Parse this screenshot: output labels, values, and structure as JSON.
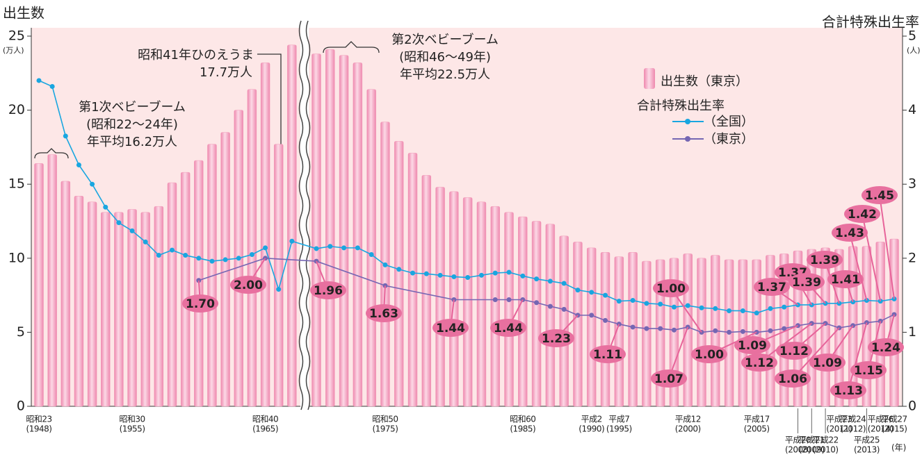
{
  "chart_data": {
    "type": "bar",
    "y_label": "出生数",
    "y_unit": "(万人)",
    "y2_label": "合計特殊出生率",
    "y2_unit": "(人)",
    "x_unit": "(年)",
    "ylim": [
      0,
      25
    ],
    "yticks": [
      0,
      5,
      10,
      15,
      20,
      25
    ],
    "y2lim": [
      0,
      5
    ],
    "y2ticks": [
      0,
      1,
      2,
      3,
      4,
      5
    ],
    "legend_title": "合計特殊出生率",
    "categories": [
      "昭和23",
      null,
      null,
      null,
      null,
      null,
      null,
      "昭和30",
      null,
      null,
      null,
      null,
      null,
      null,
      null,
      null,
      null,
      "昭和40",
      null,
      null,
      null,
      null,
      null,
      null,
      null,
      "昭和50",
      null,
      null,
      null,
      null,
      null,
      null,
      null,
      null,
      null,
      "昭和60",
      null,
      null,
      null,
      null,
      "平成2",
      null,
      "平成7",
      null,
      null,
      null,
      null,
      "平成12",
      null,
      null,
      null,
      null,
      "平成17",
      null,
      null,
      "平成20",
      "平成21",
      "平成22",
      "平成23",
      "平成24",
      "平成25",
      "平成26",
      "平成27"
    ],
    "category_years": [
      "(1948)",
      null,
      null,
      null,
      null,
      null,
      null,
      "(1955)",
      null,
      null,
      null,
      null,
      null,
      null,
      null,
      null,
      null,
      "(1965)",
      null,
      null,
      null,
      null,
      null,
      null,
      null,
      "(1975)",
      null,
      null,
      null,
      null,
      null,
      null,
      null,
      null,
      null,
      "(1985)",
      null,
      null,
      null,
      null,
      "(1990)",
      null,
      "(1995)",
      null,
      null,
      null,
      null,
      "(2000)",
      null,
      null,
      null,
      null,
      "(2005)",
      null,
      null,
      "(2008)",
      "(2009)",
      "(2010)",
      "(2011)",
      "(2012)",
      "(2013)",
      "(2014)",
      "(2015)"
    ],
    "series": [
      {
        "name": "出生数（東京）",
        "type": "bar",
        "color": "#f29ab9",
        "values": [
          16.4,
          17.0,
          15.2,
          14.2,
          13.8,
          13.1,
          13.1,
          13.3,
          13.1,
          13.5,
          15.1,
          15.8,
          16.6,
          17.7,
          18.5,
          20.0,
          21.4,
          23.2,
          17.7,
          24.4,
          23.8,
          24.1,
          23.7,
          23.2,
          21.4,
          19.2,
          17.9,
          17.1,
          15.6,
          14.8,
          14.5,
          14.1,
          13.8,
          13.5,
          13.1,
          12.8,
          12.5,
          12.3,
          11.5,
          11.1,
          10.7,
          10.4,
          10.1,
          10.4,
          9.8,
          9.9,
          10.0,
          10.3,
          10.0,
          10.2,
          9.9,
          9.9,
          9.9,
          10.2,
          10.3,
          10.5,
          10.6,
          10.7,
          10.6,
          10.8,
          10.8,
          11.1,
          11.3
        ]
      },
      {
        "name": "（全国）",
        "type": "line",
        "axis": "y2",
        "color": "#19a6e0",
        "values": [
          4.4,
          4.32,
          3.65,
          3.26,
          3.0,
          2.69,
          2.48,
          2.37,
          2.22,
          2.04,
          2.11,
          2.04,
          2.0,
          1.96,
          1.98,
          2.0,
          2.05,
          2.14,
          1.58,
          2.23,
          2.13,
          2.16,
          2.14,
          2.14,
          2.05,
          1.91,
          1.85,
          1.8,
          1.79,
          1.77,
          1.75,
          1.74,
          1.77,
          1.8,
          1.81,
          1.76,
          1.72,
          1.69,
          1.66,
          1.57,
          1.54,
          1.5,
          1.42,
          1.43,
          1.39,
          1.38,
          1.34,
          1.36,
          1.33,
          1.32,
          1.29,
          1.29,
          1.26,
          1.32,
          1.34,
          1.37,
          1.37,
          1.39,
          1.39,
          1.41,
          1.43,
          1.42,
          1.45
        ]
      },
      {
        "name": "（東京）",
        "type": "line",
        "axis": "y2",
        "color": "#7566b3",
        "values": [
          null,
          null,
          null,
          null,
          null,
          null,
          null,
          null,
          null,
          null,
          null,
          null,
          1.7,
          null,
          null,
          null,
          null,
          2.0,
          null,
          null,
          1.96,
          null,
          null,
          null,
          null,
          1.63,
          null,
          null,
          null,
          null,
          1.44,
          null,
          null,
          1.44,
          1.44,
          1.44,
          1.4,
          1.35,
          1.31,
          1.23,
          1.23,
          1.16,
          1.11,
          1.07,
          1.05,
          1.05,
          1.03,
          1.07,
          1.0,
          1.02,
          1.0,
          1.01,
          1.0,
          1.02,
          1.05,
          1.09,
          1.12,
          1.12,
          1.06,
          1.09,
          1.13,
          1.15,
          1.24
        ],
        "value_labels": [
          null,
          null,
          null,
          null,
          null,
          null,
          null,
          null,
          null,
          null,
          null,
          null,
          "1.70",
          null,
          null,
          null,
          null,
          "2.00",
          null,
          null,
          "1.96",
          null,
          null,
          null,
          null,
          "1.63",
          null,
          null,
          null,
          null,
          "1.44",
          null,
          null,
          null,
          null,
          "1.44",
          null,
          null,
          null,
          "1.23",
          null,
          null,
          "1.11",
          null,
          null,
          null,
          null,
          "1.07",
          "1.00",
          null,
          null,
          null,
          "1.00",
          null,
          null,
          "1.09",
          "1.12",
          "1.12",
          "1.06",
          "1.09",
          "1.13",
          "1.15",
          "1.24"
        ]
      }
    ],
    "annotations": [
      {
        "lines": [
          "第1次ベビーブーム",
          "(昭和22～24年)",
          "年平均16.2万人"
        ]
      },
      {
        "lines": [
          "昭和41年ひのえうま",
          "17.7万人"
        ]
      },
      {
        "lines": [
          "第2次ベビーブーム",
          "(昭和46～49年)",
          "年平均22.5万人"
        ]
      }
    ]
  }
}
